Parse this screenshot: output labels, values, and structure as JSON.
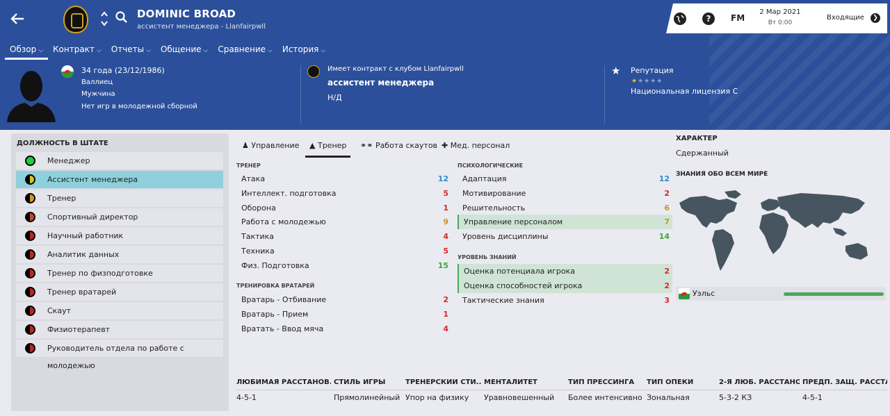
{
  "header": {
    "name": "DOMINIC BROAD",
    "subtitle": "ассистент менеджера - Llanfairpwll",
    "tabs": [
      {
        "label": "Обзор"
      },
      {
        "label": "Контракт"
      },
      {
        "label": "Отчеты"
      },
      {
        "label": "Общение"
      },
      {
        "label": "Сравнение"
      },
      {
        "label": "История"
      }
    ],
    "active_tab": "Обзор"
  },
  "topbar": {
    "fm_label": "FM",
    "help_label": "?",
    "date": "2 Мар 2021",
    "time": "Вт 0:00",
    "inbox_label": "Входящие"
  },
  "profile": {
    "age": "34 года (23/12/1986)",
    "nationality": "Валлиец",
    "gender": "Мужчина",
    "youth": "Нет игр в молодежной сборной",
    "contract_label": "Имеет контракт с клубом Llanfairpwll",
    "role": "ассистент менеджера",
    "na": "Н/Д",
    "reputation_label": "Репутация",
    "license": "Национальная лицензия C",
    "reputation_stars": 0.5
  },
  "staff_panel": {
    "title": "ДОЛЖНОСТЬ В ШТАТЕ",
    "items": [
      {
        "label": "Менеджер",
        "color": "#1ecf3a"
      },
      {
        "label": "Ассистент менеджера",
        "color": "#d4c81e"
      },
      {
        "label": "Тренер",
        "color": "#d49a1e"
      },
      {
        "label": "Спортивный директор",
        "color": "#c8452a"
      },
      {
        "label": "Научный работник",
        "color": "#b8281e"
      },
      {
        "label": "Аналитик данных",
        "color": "#b8281e"
      },
      {
        "label": "Тренер по физподготовке",
        "color": "#b8281e"
      },
      {
        "label": "Тренер вратарей",
        "color": "#b8281e"
      },
      {
        "label": "Скаут",
        "color": "#b8281e"
      },
      {
        "label": "Физиотерапевт",
        "color": "#b8281e"
      },
      {
        "label": "Руководитель отдела по работе с молодежью",
        "color": "#b8281e"
      }
    ],
    "selected": 1
  },
  "subtabs": [
    {
      "label": "Управление"
    },
    {
      "label": "Тренер"
    },
    {
      "label": "Работа скаутов"
    },
    {
      "label": "Мед. персонал"
    }
  ],
  "coach": {
    "title": "ТРЕНЕР",
    "rows": [
      {
        "label": "Атака",
        "value": "12",
        "color": "#2a8ad4"
      },
      {
        "label": "Интеллект. подготовка",
        "value": "5",
        "color": "#d42a2a"
      },
      {
        "label": "Оборона",
        "value": "1",
        "color": "#d42a2a"
      },
      {
        "label": "Работа с молодежью",
        "value": "9",
        "color": "#c89a10"
      },
      {
        "label": "Тактика",
        "value": "4",
        "color": "#d42a2a"
      },
      {
        "label": "Техника",
        "value": "5",
        "color": "#d42a2a"
      },
      {
        "label": "Физ. Подготовка",
        "value": "15",
        "color": "#3aa83a"
      }
    ]
  },
  "gk": {
    "title": "ТРЕНИРОВКА ВРАТАРЕЙ",
    "rows": [
      {
        "label": "Вратарь - Отбивание",
        "value": "2",
        "color": "#d42a2a"
      },
      {
        "label": "Вратарь - Прием",
        "value": "1",
        "color": "#d42a2a"
      },
      {
        "label": "Вратать - Ввод мяча",
        "value": "4",
        "color": "#d42a2a"
      }
    ]
  },
  "psych": {
    "title": "ПСИХОЛОГИЧЕСКИЕ",
    "rows": [
      {
        "label": "Адаптация",
        "value": "12",
        "color": "#2a8ad4"
      },
      {
        "label": "Мотивирование",
        "value": "2",
        "color": "#d42a2a"
      },
      {
        "label": "Решительность",
        "value": "6",
        "color": "#c89a10"
      },
      {
        "label": "Управление персоналом",
        "value": "7",
        "color": "#c89a10"
      },
      {
        "label": "Уровень дисциплины",
        "value": "14",
        "color": "#3aa83a"
      }
    ]
  },
  "knowledge": {
    "title": "УРОВЕНЬ ЗНАНИЙ",
    "rows": [
      {
        "label": "Оценка потенциала игрока",
        "value": "2",
        "color": "#d42a2a"
      },
      {
        "label": "Оценка способностей игрока",
        "value": "2",
        "color": "#d42a2a"
      },
      {
        "label": "Тактические знания",
        "value": "3",
        "color": "#d42a2a"
      }
    ]
  },
  "character": {
    "title": "ХАРАКТЕР",
    "value": "Сдержанный",
    "world_title": "ЗНАНИЯ ОБО ВСЕМ МИРЕ",
    "nation": "Уэльс",
    "nation_knowledge": 1.0
  },
  "bottom": [
    {
      "header": "ЛЮБИМАЯ РАССТАНОВ...",
      "value": "4-5-1"
    },
    {
      "header": "СТИЛЬ ИГРЫ",
      "value": "Прямолинейный"
    },
    {
      "header": "ТРЕНЕРСКИЙ СТИ...",
      "value": "Упор на физику"
    },
    {
      "header": "МЕНТАЛИТЕТ",
      "value": "Уравновешенный"
    },
    {
      "header": "ТИП ПРЕССИНГА",
      "value": "Более интенсивно"
    },
    {
      "header": "ТИП ОПЕКИ",
      "value": "Зональная"
    },
    {
      "header": "2-Я ЛЮБ. РАССТАНО...",
      "value": "5-3-2 КЗ"
    },
    {
      "header": "ПРЕДП. ЗАЩ. РАССТА...",
      "value": "4-5-1"
    }
  ]
}
